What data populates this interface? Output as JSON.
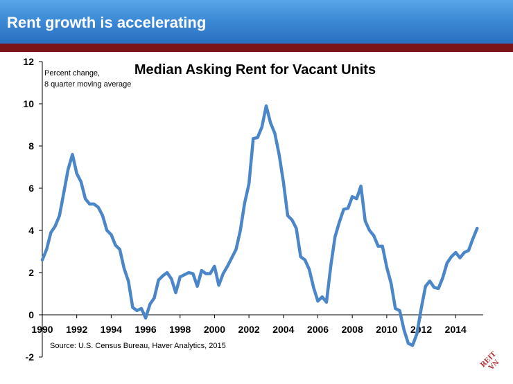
{
  "header": {
    "title": "Rent growth is accelerating"
  },
  "colors": {
    "header_top": "#5aa6e8",
    "header_bottom": "#2a6fc0",
    "band": "#7a1418",
    "line": "#4a86c8",
    "logo": "#b02a30"
  },
  "logo": {
    "text": "NAREIT"
  },
  "chart_data": {
    "type": "line",
    "title": "Median Asking Rent for Vacant Units",
    "ylabel_note": [
      "Percent change,",
      "8 quarter moving average"
    ],
    "source": "Source: U.S. Census Bureau, Haver Analytics, 2015",
    "xlim": [
      1990,
      2015.6
    ],
    "ylim": [
      -2,
      12
    ],
    "yticks": [
      -2,
      0,
      2,
      4,
      6,
      8,
      10,
      12
    ],
    "xticks": [
      1990,
      1992,
      1994,
      1996,
      1998,
      2000,
      2002,
      2004,
      2006,
      2008,
      2010,
      2012,
      2014
    ],
    "grid": false,
    "series": [
      {
        "points": [
          [
            1990.0,
            2.6
          ],
          [
            1990.25,
            3.1
          ],
          [
            1990.5,
            3.9
          ],
          [
            1990.75,
            4.2
          ],
          [
            1991.0,
            4.7
          ],
          [
            1991.25,
            5.8
          ],
          [
            1991.5,
            6.9
          ],
          [
            1991.75,
            7.6
          ],
          [
            1992.0,
            6.7
          ],
          [
            1992.25,
            6.3
          ],
          [
            1992.5,
            5.5
          ],
          [
            1992.75,
            5.25
          ],
          [
            1993.0,
            5.25
          ],
          [
            1993.25,
            5.1
          ],
          [
            1993.5,
            4.7
          ],
          [
            1993.75,
            4.0
          ],
          [
            1994.0,
            3.8
          ],
          [
            1994.25,
            3.3
          ],
          [
            1994.5,
            3.1
          ],
          [
            1994.75,
            2.2
          ],
          [
            1995.0,
            1.6
          ],
          [
            1995.25,
            0.35
          ],
          [
            1995.5,
            0.2
          ],
          [
            1995.75,
            0.3
          ],
          [
            1996.0,
            -0.15
          ],
          [
            1996.25,
            0.5
          ],
          [
            1996.5,
            0.8
          ],
          [
            1996.75,
            1.65
          ],
          [
            1997.0,
            1.85
          ],
          [
            1997.25,
            2.0
          ],
          [
            1997.5,
            1.7
          ],
          [
            1997.75,
            1.05
          ],
          [
            1998.0,
            1.8
          ],
          [
            1998.25,
            1.9
          ],
          [
            1998.5,
            2.0
          ],
          [
            1998.75,
            1.95
          ],
          [
            1999.0,
            1.35
          ],
          [
            1999.25,
            2.1
          ],
          [
            1999.5,
            1.95
          ],
          [
            1999.75,
            1.95
          ],
          [
            2000.0,
            2.3
          ],
          [
            2000.25,
            1.4
          ],
          [
            2000.5,
            1.95
          ],
          [
            2000.75,
            2.3
          ],
          [
            2001.0,
            2.7
          ],
          [
            2001.25,
            3.1
          ],
          [
            2001.5,
            4.0
          ],
          [
            2001.75,
            5.3
          ],
          [
            2002.0,
            6.2
          ],
          [
            2002.25,
            8.35
          ],
          [
            2002.5,
            8.4
          ],
          [
            2002.75,
            8.9
          ],
          [
            2003.0,
            9.9
          ],
          [
            2003.25,
            9.1
          ],
          [
            2003.5,
            8.6
          ],
          [
            2003.75,
            7.6
          ],
          [
            2004.0,
            6.3
          ],
          [
            2004.25,
            4.7
          ],
          [
            2004.5,
            4.5
          ],
          [
            2004.75,
            4.1
          ],
          [
            2005.0,
            2.75
          ],
          [
            2005.25,
            2.6
          ],
          [
            2005.5,
            2.15
          ],
          [
            2005.75,
            1.3
          ],
          [
            2006.0,
            0.65
          ],
          [
            2006.25,
            0.85
          ],
          [
            2006.5,
            0.6
          ],
          [
            2006.75,
            2.3
          ],
          [
            2007.0,
            3.7
          ],
          [
            2007.25,
            4.4
          ],
          [
            2007.5,
            5.0
          ],
          [
            2007.75,
            5.05
          ],
          [
            2008.0,
            5.6
          ],
          [
            2008.25,
            5.5
          ],
          [
            2008.5,
            6.1
          ],
          [
            2008.75,
            4.45
          ],
          [
            2009.0,
            4.0
          ],
          [
            2009.25,
            3.75
          ],
          [
            2009.5,
            3.25
          ],
          [
            2009.75,
            3.25
          ],
          [
            2010.0,
            2.25
          ],
          [
            2010.25,
            1.5
          ],
          [
            2010.5,
            0.3
          ],
          [
            2010.75,
            0.2
          ],
          [
            2011.0,
            -0.7
          ],
          [
            2011.25,
            -1.35
          ],
          [
            2011.5,
            -1.45
          ],
          [
            2011.75,
            -0.9
          ],
          [
            2012.0,
            0.3
          ],
          [
            2012.25,
            1.35
          ],
          [
            2012.5,
            1.6
          ],
          [
            2012.75,
            1.3
          ],
          [
            2013.0,
            1.25
          ],
          [
            2013.25,
            1.75
          ],
          [
            2013.5,
            2.45
          ],
          [
            2013.75,
            2.75
          ],
          [
            2014.0,
            2.95
          ],
          [
            2014.25,
            2.7
          ],
          [
            2014.5,
            2.95
          ],
          [
            2014.75,
            3.05
          ],
          [
            2015.0,
            3.6
          ],
          [
            2015.25,
            4.1
          ]
        ]
      }
    ]
  }
}
